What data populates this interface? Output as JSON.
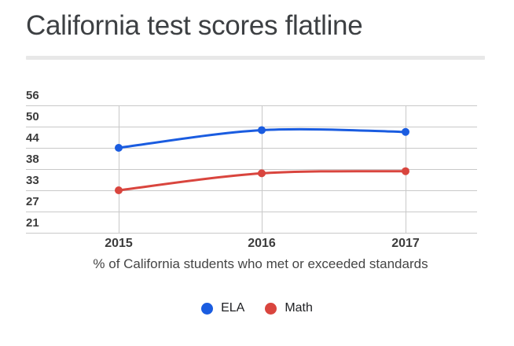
{
  "header": {
    "title": "California test scores flatline"
  },
  "chart_data": {
    "type": "line",
    "title": "California test scores flatline",
    "caption": "% of California students who met or exceeded standards",
    "categories": [
      "2015",
      "2016",
      "2017"
    ],
    "series": [
      {
        "name": "ELA",
        "color": "#1a5ce0",
        "values": [
          44,
          49,
          48.5
        ]
      },
      {
        "name": "Math",
        "color": "#d9453e",
        "values": [
          33,
          37,
          37.5
        ]
      }
    ],
    "y_ticks": [
      56,
      50,
      44,
      38,
      33,
      27,
      21
    ],
    "grid": true,
    "smooth": true,
    "legend_position": "bottom",
    "point_style": "filled-circle"
  }
}
